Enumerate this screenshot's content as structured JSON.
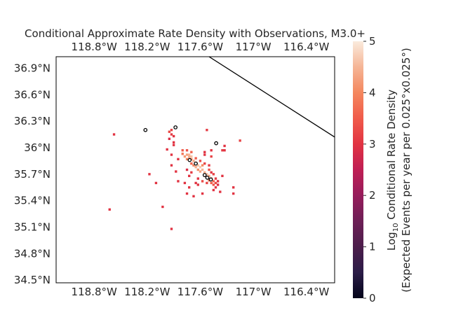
{
  "chart_data": {
    "type": "heatmap",
    "title": "Conditional Approximate Rate Density with Observations, M3.0+",
    "x_ticks": [
      "118.8°W",
      "118.2°W",
      "117.6°W",
      "117°W",
      "116.4°W"
    ],
    "x_tick_values": [
      -118.8,
      -118.2,
      -117.6,
      -117.0,
      -116.4
    ],
    "y_ticks": [
      "36.9°N",
      "36.6°N",
      "36.3°N",
      "36°N",
      "35.7°N",
      "35.4°N",
      "35.1°N",
      "34.8°N",
      "34.5°N"
    ],
    "y_tick_values": [
      36.9,
      36.6,
      36.3,
      36.0,
      35.7,
      35.4,
      35.1,
      34.8,
      34.5
    ],
    "xlim": [
      -119.23,
      -116.08
    ],
    "ylim": [
      34.47,
      37.03
    ],
    "colorbar": {
      "label_line1": "Log",
      "label_sub": "10",
      "label_rest": " Conditional Rate Density",
      "label_line2": "(Expected Events per year per 0.025°x0.025°)",
      "ticks": [
        "0",
        "1",
        "2",
        "3",
        "4",
        "5"
      ],
      "tick_values": [
        0,
        1,
        2,
        3,
        4,
        5
      ],
      "range": [
        0,
        5
      ],
      "colormap": "rocket"
    },
    "boundary_line": [
      [
        -117.5,
        37.03
      ],
      [
        -116.08,
        36.12
      ]
    ],
    "cells": [
      [
        -117.75,
        35.92,
        4.3
      ],
      [
        -117.725,
        35.92,
        4.5
      ],
      [
        -117.7,
        35.9,
        4.6
      ],
      [
        -117.775,
        35.9,
        4.2
      ],
      [
        -117.725,
        35.895,
        4.4
      ],
      [
        -117.75,
        35.87,
        4.0
      ],
      [
        -117.7,
        35.87,
        4.2
      ],
      [
        -117.675,
        35.85,
        4.4
      ],
      [
        -117.65,
        35.83,
        4.5
      ],
      [
        -117.625,
        35.8,
        4.6
      ],
      [
        -117.6,
        35.78,
        4.7
      ],
      [
        -117.65,
        35.78,
        4.4
      ],
      [
        -117.575,
        35.75,
        4.5
      ],
      [
        -117.6,
        35.73,
        4.3
      ],
      [
        -117.55,
        35.72,
        4.4
      ],
      [
        -117.525,
        35.7,
        4.6
      ],
      [
        -117.5,
        35.68,
        4.3
      ],
      [
        -117.55,
        35.68,
        4.2
      ],
      [
        -117.475,
        35.65,
        4.0
      ],
      [
        -117.5,
        35.63,
        3.8
      ],
      [
        -117.45,
        35.62,
        3.6
      ],
      [
        -117.475,
        35.6,
        3.5
      ],
      [
        -117.425,
        35.6,
        3.3
      ],
      [
        -117.45,
        35.58,
        3.4
      ],
      [
        -117.625,
        35.75,
        4.1
      ],
      [
        -117.575,
        35.8,
        4.0
      ],
      [
        -117.675,
        35.8,
        3.9
      ],
      [
        -117.7,
        35.82,
        3.6
      ],
      [
        -117.8,
        35.93,
        3.8
      ],
      [
        -117.8,
        35.97,
        3.5
      ],
      [
        -117.75,
        35.97,
        3.4
      ],
      [
        -117.7,
        35.95,
        3.6
      ],
      [
        -117.65,
        35.88,
        3.5
      ],
      [
        -117.6,
        35.85,
        3.3
      ],
      [
        -117.55,
        35.82,
        3.2
      ],
      [
        -117.5,
        35.75,
        3.4
      ],
      [
        -117.45,
        35.7,
        3.2
      ],
      [
        -117.425,
        35.65,
        3.1
      ],
      [
        -117.4,
        35.62,
        3.0
      ],
      [
        -117.4,
        35.58,
        2.9
      ],
      [
        -117.525,
        35.6,
        3.2
      ],
      [
        -117.575,
        35.62,
        3.3
      ],
      [
        -117.625,
        35.65,
        3.0
      ],
      [
        -117.7,
        35.72,
        3.1
      ],
      [
        -117.75,
        35.75,
        2.9
      ],
      [
        -117.475,
        35.72,
        3.0
      ],
      [
        -117.5,
        35.8,
        3.1
      ],
      [
        -117.55,
        35.92,
        3.0
      ],
      [
        -117.475,
        35.9,
        3.2
      ],
      [
        -117.95,
        36.18,
        3.3
      ],
      [
        -117.925,
        36.2,
        3.2
      ],
      [
        -117.925,
        36.15,
        3.1
      ],
      [
        -117.9,
        36.13,
        3.0
      ],
      [
        -117.95,
        36.1,
        2.9
      ],
      [
        -117.525,
        36.2,
        3.1
      ],
      [
        -117.325,
        36.02,
        3.0
      ],
      [
        -117.325,
        35.97,
        3.0
      ],
      [
        -117.35,
        35.97,
        3.1
      ],
      [
        -117.15,
        36.08,
        3.2
      ],
      [
        -117.9,
        36.06,
        3.0
      ],
      [
        -117.9,
        36.03,
        3.0
      ],
      [
        -117.975,
        35.98,
        3.0
      ],
      [
        -117.925,
        35.92,
        3.0
      ],
      [
        -117.85,
        35.87,
        3.0
      ],
      [
        -117.925,
        35.8,
        3.0
      ],
      [
        -117.425,
        35.55,
        3.0
      ],
      [
        -117.225,
        35.55,
        3.0
      ],
      [
        -117.225,
        35.48,
        3.0
      ],
      [
        -117.375,
        35.5,
        3.0
      ],
      [
        -117.625,
        35.58,
        3.0
      ],
      [
        -117.65,
        35.6,
        3.0
      ],
      [
        -117.725,
        35.55,
        3.0
      ],
      [
        -117.775,
        35.6,
        3.0
      ],
      [
        -117.75,
        35.48,
        3.0
      ],
      [
        -117.675,
        35.45,
        3.0
      ],
      [
        -117.575,
        35.48,
        3.0
      ],
      [
        -117.45,
        35.52,
        3.0
      ],
      [
        -117.35,
        35.68,
        3.0
      ],
      [
        -117.85,
        35.62,
        3.0
      ],
      [
        -118.1,
        35.6,
        3.0
      ],
      [
        -118.175,
        35.7,
        3.0
      ],
      [
        -117.875,
        35.73,
        3.0
      ],
      [
        -117.725,
        35.68,
        3.0
      ],
      [
        -118.575,
        36.15,
        3.0
      ],
      [
        -118.625,
        35.3,
        3.0
      ],
      [
        -118.025,
        35.33,
        3.0
      ],
      [
        -117.925,
        35.08,
        3.0
      ],
      [
        -117.55,
        35.95,
        3.0
      ],
      [
        -117.475,
        35.97,
        3.0
      ]
    ],
    "observations": [
      [
        -118.22,
        36.2
      ],
      [
        -117.88,
        36.23
      ],
      [
        -117.42,
        36.05
      ],
      [
        -117.72,
        35.86
      ],
      [
        -117.65,
        35.82
      ],
      [
        -117.55,
        35.69
      ],
      [
        -117.52,
        35.66
      ],
      [
        -117.48,
        35.64
      ]
    ]
  }
}
